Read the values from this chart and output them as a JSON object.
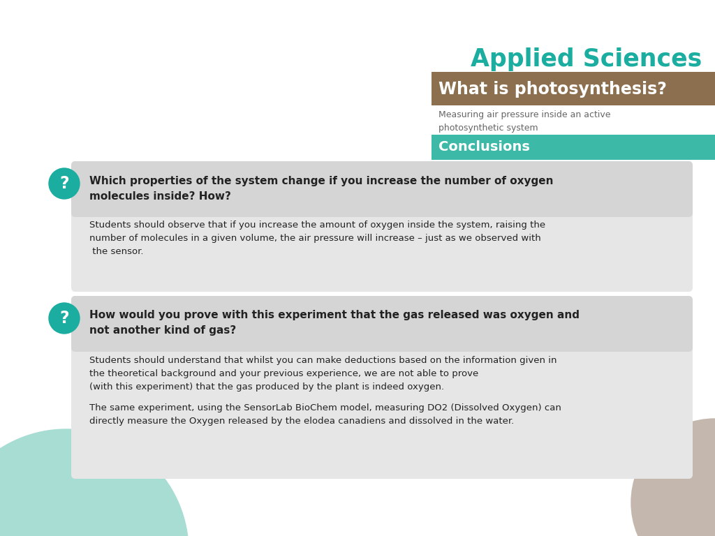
{
  "bg_color": "#ffffff",
  "teal_color": "#1aada0",
  "brown_color": "#8B6F4E",
  "conclusions_color": "#3db9a8",
  "gray_box_color": "#e6e6e6",
  "text_dark": "#222222",
  "text_gray": "#666666",
  "applied_sciences_text": "Applied Sciences",
  "main_title": "What is photosynthesis?",
  "subtitle": "Measuring air pressure inside an active\nphotosynthetic system",
  "section_label": "Conclusions",
  "q1_title": "Which properties of the system change if you increase the number of oxygen\nmolecules inside? How?",
  "q1_body": "Students should observe that if you increase the amount of oxygen inside the system, raising the\nnumber of molecules in a given volume, the air pressure will increase – just as we observed with\n the sensor.",
  "q2_title": "How would you prove with this experiment that the gas released was oxygen and\nnot another kind of gas?",
  "q2_body1": "Students should understand that whilst you can make deductions based on the information given in\nthe theoretical background and your previous experience, we are not able to prove\n(with this experiment) that the gas produced by the plant is indeed oxygen.",
  "q2_body2": "The same experiment, using the SensorLab BioChem model, measuring DO2 (Dissolved Oxygen) can\ndirectly measure the Oxygen released by the elodea canadiens and dissolved in the water.",
  "deco_teal_color": "#a8ddd4",
  "deco_brown_color": "#c4b8ae",
  "fig_width": 10.24,
  "fig_height": 7.68,
  "dpi": 100
}
